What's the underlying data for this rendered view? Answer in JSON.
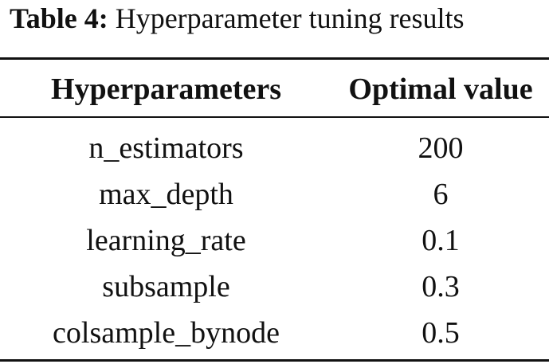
{
  "table": {
    "caption_label": "Table 4:",
    "caption_text": "Hyperparameter tuning results",
    "header": [
      "Hyperparameters",
      "Optimal value"
    ],
    "rows": [
      [
        "n_estimators",
        "200"
      ],
      [
        "max_depth",
        "6"
      ],
      [
        "learning_rate",
        "0.1"
      ],
      [
        "subsample",
        "0.3"
      ],
      [
        "colsample_bynode",
        "0.5"
      ]
    ]
  }
}
